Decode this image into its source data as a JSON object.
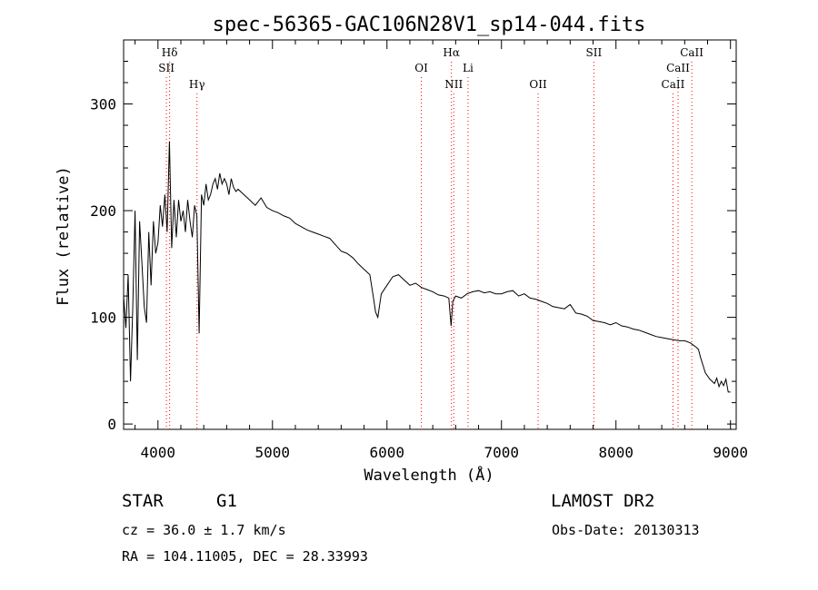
{
  "chart_data": {
    "type": "line",
    "title": "spec-56365-GAC106N28V1_sp14-044.fits",
    "xlabel": "Wavelength (Å)",
    "ylabel": "Flux (relative)",
    "xlim": [
      3700,
      9050
    ],
    "ylim": [
      -5,
      360
    ],
    "x_ticks": [
      4000,
      5000,
      6000,
      7000,
      8000,
      9000
    ],
    "y_ticks": [
      0,
      100,
      200,
      300
    ],
    "grid": false,
    "line_color": "#000000",
    "series": [
      {
        "x": [
          3700,
          3720,
          3740,
          3760,
          3780,
          3800,
          3820,
          3840,
          3860,
          3880,
          3900,
          3920,
          3940,
          3960,
          3980,
          4000,
          4020,
          4040,
          4060,
          4080,
          4100,
          4120,
          4140,
          4160,
          4180,
          4200,
          4220,
          4240,
          4260,
          4280,
          4300,
          4320,
          4340,
          4360,
          4380,
          4400,
          4420,
          4440,
          4460,
          4480,
          4500,
          4520,
          4540,
          4560,
          4580,
          4600,
          4620,
          4640,
          4660,
          4680,
          4700,
          4750,
          4800,
          4850,
          4900,
          4950,
          5000,
          5050,
          5100,
          5150,
          5200,
          5250,
          5300,
          5350,
          5400,
          5450,
          5500,
          5550,
          5600,
          5650,
          5700,
          5750,
          5800,
          5850,
          5880,
          5900,
          5920,
          5950,
          6000,
          6050,
          6100,
          6150,
          6200,
          6250,
          6300,
          6350,
          6400,
          6450,
          6500,
          6540,
          6560,
          6575,
          6600,
          6650,
          6700,
          6750,
          6800,
          6850,
          6900,
          6950,
          7000,
          7050,
          7100,
          7150,
          7200,
          7250,
          7300,
          7350,
          7400,
          7450,
          7500,
          7550,
          7600,
          7650,
          7700,
          7750,
          7800,
          7850,
          7900,
          7950,
          8000,
          8050,
          8100,
          8150,
          8200,
          8250,
          8300,
          8350,
          8400,
          8450,
          8500,
          8550,
          8600,
          8650,
          8700,
          8720,
          8740,
          8760,
          8780,
          8800,
          8820,
          8840,
          8860,
          8880,
          8900,
          8920,
          8940,
          8960,
          8980,
          9000
        ],
        "y": [
          120,
          90,
          140,
          40,
          110,
          200,
          60,
          190,
          150,
          110,
          95,
          180,
          130,
          190,
          160,
          170,
          205,
          185,
          215,
          180,
          265,
          165,
          210,
          175,
          210,
          190,
          200,
          180,
          210,
          190,
          175,
          205,
          195,
          85,
          215,
          205,
          225,
          210,
          215,
          225,
          230,
          220,
          235,
          225,
          230,
          225,
          215,
          230,
          222,
          218,
          220,
          215,
          210,
          205,
          212,
          203,
          200,
          198,
          195,
          193,
          188,
          185,
          182,
          180,
          178,
          176,
          174,
          168,
          162,
          160,
          156,
          150,
          145,
          140,
          120,
          105,
          100,
          122,
          130,
          138,
          140,
          135,
          130,
          132,
          128,
          126,
          124,
          121,
          120,
          118,
          92,
          115,
          120,
          118,
          122,
          124,
          125,
          123,
          124,
          122,
          122,
          124,
          125,
          120,
          122,
          118,
          117,
          115,
          113,
          110,
          109,
          108,
          112,
          104,
          103,
          101,
          97,
          96,
          95,
          93,
          95,
          92,
          91,
          89,
          88,
          86,
          84,
          82,
          81,
          80,
          79,
          78,
          78,
          76,
          72,
          70,
          62,
          55,
          48,
          45,
          42,
          40,
          38,
          43,
          35,
          40,
          36,
          42,
          30,
          30
        ]
      }
    ],
    "lines": [
      {
        "name": "Hδ",
        "x": 4102,
        "row": 1
      },
      {
        "name": "SII",
        "x": 4074,
        "row": 2
      },
      {
        "name": "Hγ",
        "x": 4341,
        "row": 3
      },
      {
        "name": "OI",
        "x": 6300,
        "row": 2
      },
      {
        "name": "Hα",
        "x": 6563,
        "row": 1
      },
      {
        "name": "NII",
        "x": 6583,
        "row": 3
      },
      {
        "name": "Li",
        "x": 6708,
        "row": 2
      },
      {
        "name": "OII",
        "x": 7320,
        "row": 3
      },
      {
        "name": "SII",
        "x": 7807,
        "row": 1
      },
      {
        "name": "CaII",
        "x": 8662,
        "row": 1
      },
      {
        "name": "CaII",
        "x": 8542,
        "row": 2
      },
      {
        "name": "CaII",
        "x": 8498,
        "row": 3
      }
    ],
    "line_marker_color": "#ff0000"
  },
  "footer": {
    "object_class": "STAR",
    "subclass": "G1",
    "release": "LAMOST DR2",
    "redshift": "cz = 36.0 ± 1.7 km/s",
    "obs_date": "Obs-Date: 20130313",
    "coords": "RA = 104.11005, DEC =  28.33993"
  }
}
